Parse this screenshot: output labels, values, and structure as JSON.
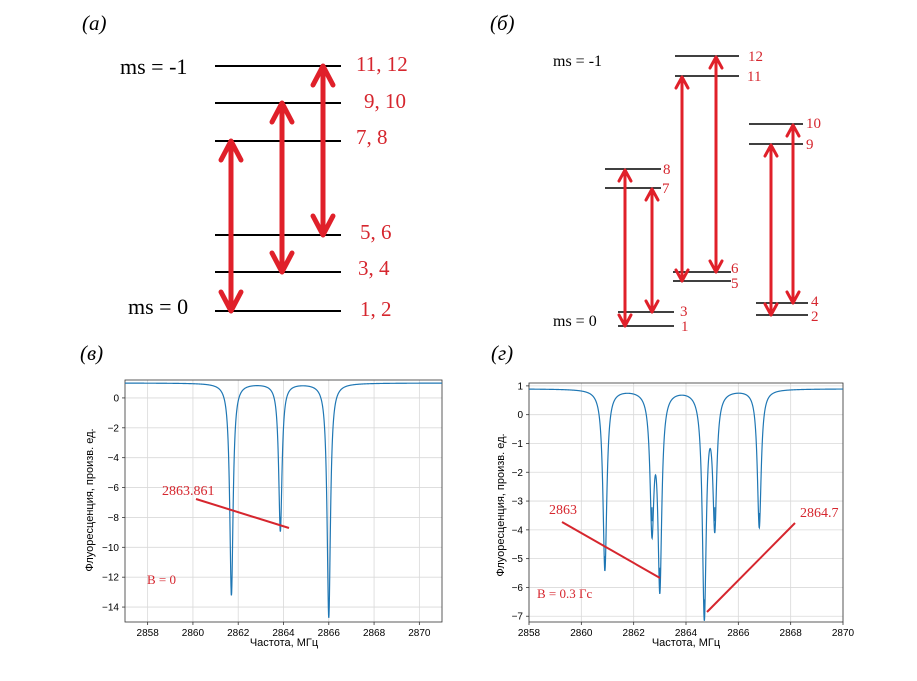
{
  "panel_a": {
    "letter": "(a)",
    "ms_top_label": "ms = -1",
    "ms_bottom_label": "ms = 0",
    "level_labels": [
      "11, 12",
      "9, 10",
      "7, 8",
      "5, 6",
      "3, 4",
      "1, 2"
    ],
    "colors": {
      "arrow": "#e0202a",
      "label": "#d6262e",
      "line": "#000000"
    }
  },
  "panel_b": {
    "letter": "(б)",
    "ms_top_label": "ms = -1",
    "ms_bottom_label": "ms = 0",
    "level_labels": [
      "1",
      "3",
      "7",
      "8",
      "5",
      "6",
      "11",
      "12",
      "2",
      "4",
      "9",
      "10"
    ]
  },
  "chart_data": [
    {
      "panel": "(в)",
      "type": "line",
      "xlabel": "Частота, МГц",
      "ylabel": "Флуоресценция, произв. ед.",
      "xlim": [
        2857,
        2871
      ],
      "ylim": [
        -15,
        1.2
      ],
      "xticks": [
        2858,
        2860,
        2862,
        2864,
        2866,
        2868,
        2870
      ],
      "yticks": [
        0,
        -2,
        -4,
        -6,
        -8,
        -10,
        -12,
        -14
      ],
      "grid": true,
      "baseline": 1.0,
      "dips": [
        {
          "x": 2861.7,
          "depth": -13.2
        },
        {
          "x": 2863.861,
          "depth": -8.9
        },
        {
          "x": 2866.0,
          "depth": -14.7
        }
      ],
      "annotations": [
        {
          "text": "2863.861",
          "x": 2863.861,
          "y": -8.9
        },
        {
          "text": "B = 0"
        }
      ],
      "line_color": "#1f77b4"
    },
    {
      "panel": "(г)",
      "type": "line",
      "xlabel": "Частота, МГц",
      "ylabel": "Флуоресценция, произв. ед.",
      "xlim": [
        2858,
        2870
      ],
      "ylim": [
        -7.2,
        1.1
      ],
      "xticks": [
        2858,
        2860,
        2862,
        2864,
        2866,
        2868,
        2870
      ],
      "yticks": [
        1,
        0,
        -1,
        -2,
        -3,
        -4,
        -5,
        -6,
        -7
      ],
      "grid": true,
      "baseline": 0.9,
      "dips": [
        {
          "x": 2860.9,
          "depth": -5.4
        },
        {
          "x": 2862.7,
          "depth": -3.7
        },
        {
          "x": 2863.0,
          "depth": -5.8
        },
        {
          "x": 2864.7,
          "depth": -6.9
        },
        {
          "x": 2865.1,
          "depth": -3.7
        },
        {
          "x": 2866.8,
          "depth": -3.9
        }
      ],
      "annotations": [
        {
          "text": "2863",
          "x": 2863.0,
          "y": -5.8
        },
        {
          "text": "2864.7",
          "x": 2864.7,
          "y": -6.9
        },
        {
          "text": "B = 0.3 Гс"
        }
      ],
      "line_color": "#1f77b4"
    }
  ]
}
